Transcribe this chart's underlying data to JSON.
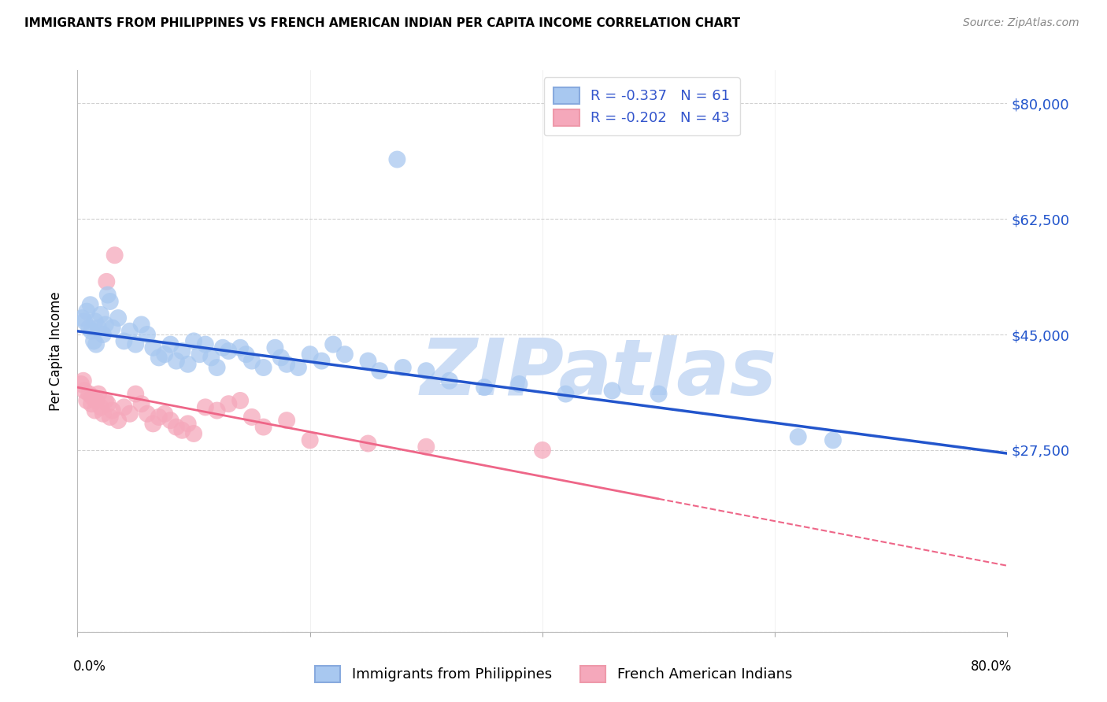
{
  "title": "IMMIGRANTS FROM PHILIPPINES VS FRENCH AMERICAN INDIAN PER CAPITA INCOME CORRELATION CHART",
  "source": "Source: ZipAtlas.com",
  "ylabel": "Per Capita Income",
  "yticks": [
    0,
    27500,
    45000,
    62500,
    80000
  ],
  "ytick_labels": [
    "",
    "$27,500",
    "$45,000",
    "$62,500",
    "$80,000"
  ],
  "xlim": [
    0.0,
    80.0
  ],
  "ylim": [
    0,
    85000
  ],
  "blue_R": -0.337,
  "blue_N": 61,
  "pink_R": -0.202,
  "pink_N": 43,
  "blue_color": "#a8c8f0",
  "pink_color": "#f5a8bb",
  "blue_line_color": "#2255cc",
  "pink_line_color": "#ee6688",
  "blue_scatter": [
    [
      0.4,
      47500
    ],
    [
      0.6,
      47000
    ],
    [
      0.8,
      48500
    ],
    [
      1.0,
      46000
    ],
    [
      1.1,
      49500
    ],
    [
      1.2,
      45500
    ],
    [
      1.4,
      44000
    ],
    [
      1.5,
      47000
    ],
    [
      1.6,
      43500
    ],
    [
      1.8,
      46000
    ],
    [
      2.0,
      48000
    ],
    [
      2.2,
      45000
    ],
    [
      2.4,
      46500
    ],
    [
      2.6,
      51000
    ],
    [
      2.8,
      50000
    ],
    [
      3.0,
      46000
    ],
    [
      3.5,
      47500
    ],
    [
      4.0,
      44000
    ],
    [
      4.5,
      45500
    ],
    [
      5.0,
      43500
    ],
    [
      5.5,
      46500
    ],
    [
      6.0,
      45000
    ],
    [
      6.5,
      43000
    ],
    [
      7.0,
      41500
    ],
    [
      7.5,
      42000
    ],
    [
      8.0,
      43500
    ],
    [
      8.5,
      41000
    ],
    [
      9.0,
      42500
    ],
    [
      9.5,
      40500
    ],
    [
      10.0,
      44000
    ],
    [
      10.5,
      42000
    ],
    [
      11.0,
      43500
    ],
    [
      11.5,
      41500
    ],
    [
      12.0,
      40000
    ],
    [
      12.5,
      43000
    ],
    [
      13.0,
      42500
    ],
    [
      14.0,
      43000
    ],
    [
      14.5,
      42000
    ],
    [
      15.0,
      41000
    ],
    [
      16.0,
      40000
    ],
    [
      17.0,
      43000
    ],
    [
      17.5,
      41500
    ],
    [
      18.0,
      40500
    ],
    [
      19.0,
      40000
    ],
    [
      20.0,
      42000
    ],
    [
      21.0,
      41000
    ],
    [
      22.0,
      43500
    ],
    [
      23.0,
      42000
    ],
    [
      25.0,
      41000
    ],
    [
      26.0,
      39500
    ],
    [
      28.0,
      40000
    ],
    [
      30.0,
      39500
    ],
    [
      32.0,
      38000
    ],
    [
      35.0,
      37000
    ],
    [
      38.0,
      37500
    ],
    [
      42.0,
      36000
    ],
    [
      46.0,
      36500
    ],
    [
      50.0,
      36000
    ],
    [
      62.0,
      29500
    ],
    [
      65.0,
      29000
    ],
    [
      27.5,
      71500
    ]
  ],
  "pink_scatter": [
    [
      0.3,
      37500
    ],
    [
      0.5,
      38000
    ],
    [
      0.6,
      36500
    ],
    [
      0.8,
      35000
    ],
    [
      1.0,
      36000
    ],
    [
      1.2,
      34500
    ],
    [
      1.3,
      35500
    ],
    [
      1.5,
      33500
    ],
    [
      1.6,
      35000
    ],
    [
      1.8,
      36000
    ],
    [
      2.0,
      34000
    ],
    [
      2.2,
      33000
    ],
    [
      2.4,
      35000
    ],
    [
      2.6,
      34500
    ],
    [
      2.8,
      32500
    ],
    [
      3.0,
      33500
    ],
    [
      3.5,
      32000
    ],
    [
      4.0,
      34000
    ],
    [
      4.5,
      33000
    ],
    [
      5.0,
      36000
    ],
    [
      5.5,
      34500
    ],
    [
      6.0,
      33000
    ],
    [
      6.5,
      31500
    ],
    [
      7.0,
      32500
    ],
    [
      7.5,
      33000
    ],
    [
      8.0,
      32000
    ],
    [
      8.5,
      31000
    ],
    [
      9.0,
      30500
    ],
    [
      9.5,
      31500
    ],
    [
      10.0,
      30000
    ],
    [
      11.0,
      34000
    ],
    [
      12.0,
      33500
    ],
    [
      13.0,
      34500
    ],
    [
      14.0,
      35000
    ],
    [
      15.0,
      32500
    ],
    [
      16.0,
      31000
    ],
    [
      18.0,
      32000
    ],
    [
      20.0,
      29000
    ],
    [
      25.0,
      28500
    ],
    [
      30.0,
      28000
    ],
    [
      3.2,
      57000
    ],
    [
      2.5,
      53000
    ],
    [
      40.0,
      27500
    ]
  ],
  "blue_line_x0": 0,
  "blue_line_y0": 45500,
  "blue_line_x1": 80,
  "blue_line_y1": 27000,
  "pink_line_x0": 0,
  "pink_line_y0": 37000,
  "pink_line_x1": 80,
  "pink_line_y1": 10000,
  "watermark_text": "ZIPatlas",
  "watermark_color": "#ccddf5",
  "legend_blue_label": "Immigrants from Philippines",
  "legend_pink_label": "French American Indians",
  "background_color": "#ffffff",
  "grid_color": "#cccccc",
  "legend_R_color": "#3355cc"
}
